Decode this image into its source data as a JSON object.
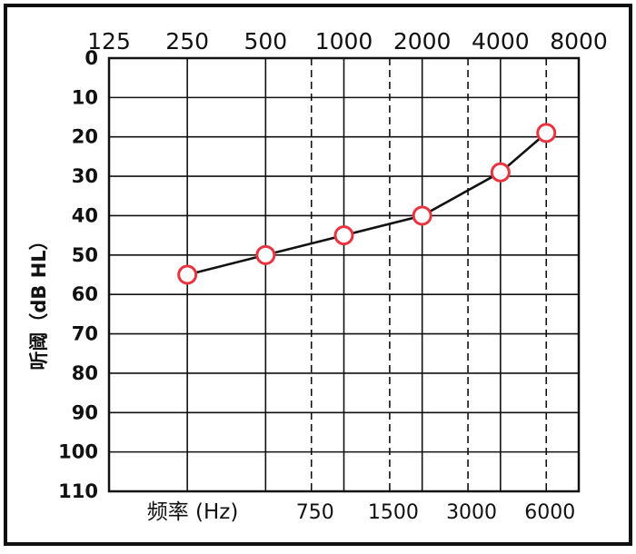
{
  "chart_data": {
    "type": "line",
    "title": "",
    "xlabel": "频率 (Hz)",
    "ylabel": "听阈（dB HL）",
    "x_scale": "log",
    "y_inverted": true,
    "ylim": [
      0,
      110
    ],
    "y_ticks": [
      0,
      10,
      20,
      30,
      40,
      50,
      60,
      70,
      80,
      90,
      100,
      110
    ],
    "x_ticks_top": [
      125,
      250,
      500,
      1000,
      2000,
      4000,
      8000
    ],
    "x_ticks_bottom": [
      750,
      1500,
      3000,
      6000
    ],
    "dashed_gridlines_at": [
      750,
      1500,
      3000,
      6000
    ],
    "grid": true,
    "marker": "circle",
    "colors": {
      "marker": "#e8343f",
      "line": "#111111",
      "grid": "#111111"
    },
    "series": [
      {
        "x": [
          250,
          500,
          1000,
          2000,
          4000,
          6000
        ],
        "y": [
          55,
          50,
          45,
          40,
          29,
          19
        ]
      }
    ]
  }
}
